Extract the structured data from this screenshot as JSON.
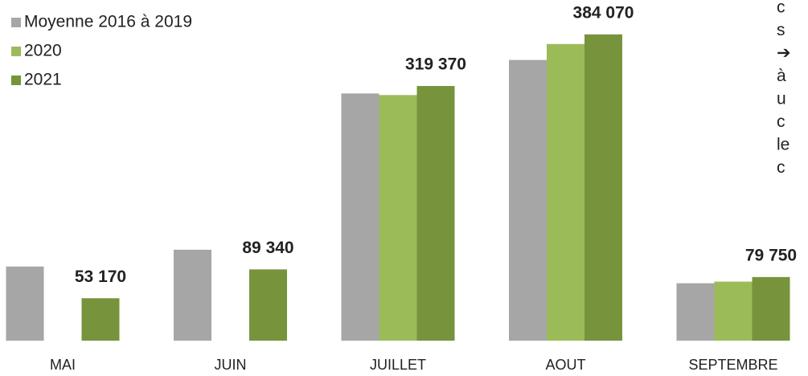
{
  "chart_data": {
    "type": "bar",
    "categories": [
      "MAI",
      "JUIN",
      "JUILLET",
      "AOUT",
      "SEPTEMBRE"
    ],
    "series": [
      {
        "name": "Moyenne 2016 à 2019",
        "color": "#a6a6a6",
        "values": [
          93000,
          114000,
          310000,
          352000,
          72000
        ]
      },
      {
        "name": "2020",
        "color": "#9bbb59",
        "values": [
          null,
          null,
          308000,
          372000,
          74000
        ]
      },
      {
        "name": "2021",
        "color": "#77933c",
        "values": [
          53170,
          89340,
          319370,
          384070,
          79750
        ],
        "value_labels": [
          "53 170",
          "89 340",
          "319 370",
          "384 070",
          "79 750"
        ]
      }
    ],
    "ylim": [
      0,
      400000
    ],
    "legend": "upper left",
    "annotations": [
      "c",
      "s",
      "➔",
      "à",
      "u",
      "c",
      "le",
      "c"
    ]
  }
}
